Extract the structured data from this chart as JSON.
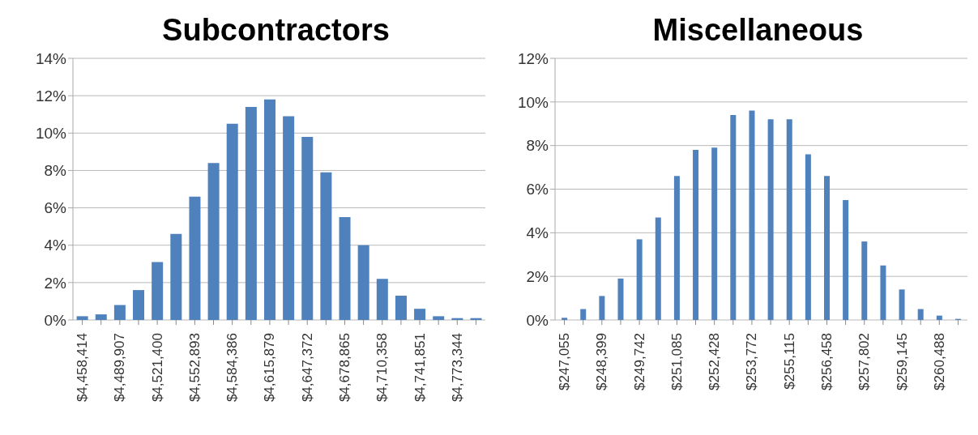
{
  "chart_data": [
    {
      "type": "bar",
      "title": "Subcontractors",
      "color": "#4f81bd",
      "grid": "y",
      "categories": [
        "$4,458,414",
        null,
        "$4,489,907",
        null,
        "$4,521,400",
        null,
        "$4,552,893",
        null,
        "$4,584,386",
        null,
        "$4,615,879",
        null,
        "$4,647,372",
        null,
        "$4,678,865",
        null,
        "$4,710,358",
        null,
        "$4,741,851",
        null,
        "$4,773,344",
        null
      ],
      "values": [
        0.2,
        0.3,
        0.8,
        1.6,
        3.1,
        4.6,
        6.6,
        8.4,
        10.5,
        11.4,
        11.8,
        10.9,
        9.8,
        7.9,
        5.5,
        4.0,
        2.2,
        1.3,
        0.6,
        0.2,
        0.1,
        0.1
      ],
      "ylim": [
        0,
        14
      ],
      "yticks": [
        {
          "value": 0,
          "label": "0%"
        },
        {
          "value": 2,
          "label": "2%"
        },
        {
          "value": 4,
          "label": "4%"
        },
        {
          "value": 6,
          "label": "6%"
        },
        {
          "value": 8,
          "label": "8%"
        },
        {
          "value": 10,
          "label": "10%"
        },
        {
          "value": 12,
          "label": "12%"
        },
        {
          "value": 14,
          "label": "14%"
        }
      ]
    },
    {
      "type": "bar",
      "title": "Miscellaneous",
      "color": "#4f81bd",
      "grid": "y",
      "categories": [
        "$247,055",
        null,
        "$248,399",
        null,
        "$249,742",
        null,
        "$251,085",
        null,
        "$252,428",
        null,
        "$253,772",
        null,
        "$255,115",
        null,
        "$256,458",
        null,
        "$257,802",
        null,
        "$259,145",
        null,
        "$260,488",
        null
      ],
      "values": [
        0.1,
        0.5,
        1.1,
        1.9,
        3.7,
        4.7,
        6.6,
        7.8,
        7.9,
        9.4,
        9.6,
        9.2,
        9.2,
        7.6,
        6.6,
        5.5,
        3.6,
        2.5,
        1.4,
        0.5,
        0.2,
        0.05
      ],
      "ylim": [
        0,
        12
      ],
      "yticks": [
        {
          "value": 0,
          "label": "0%"
        },
        {
          "value": 2,
          "label": "2%"
        },
        {
          "value": 4,
          "label": "4%"
        },
        {
          "value": 6,
          "label": "6%"
        },
        {
          "value": 8,
          "label": "8%"
        },
        {
          "value": 10,
          "label": "10%"
        },
        {
          "value": 12,
          "label": "12%"
        }
      ]
    }
  ]
}
